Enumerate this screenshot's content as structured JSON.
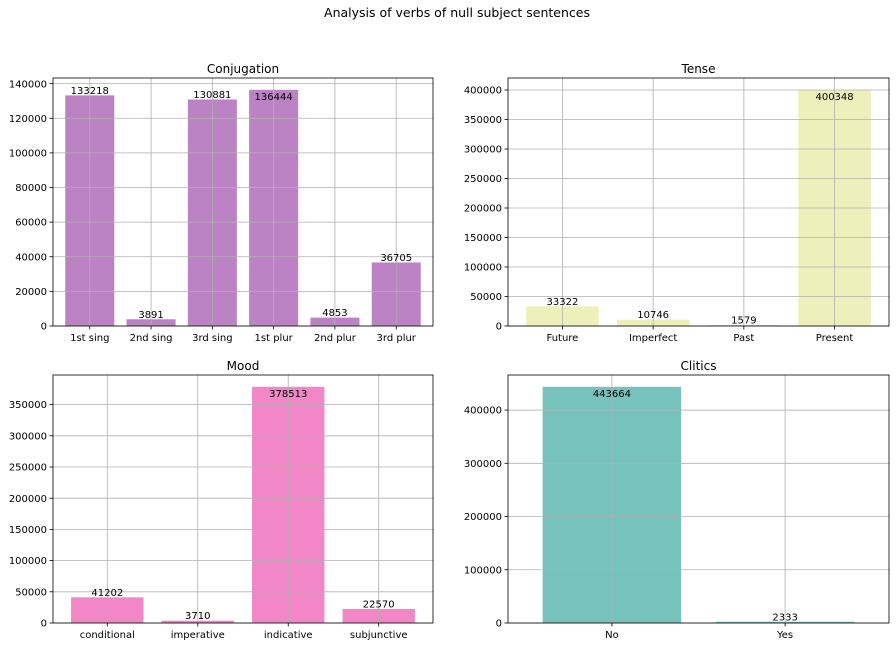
{
  "figure": {
    "suptitle": "Analysis of verbs of null subject sentences"
  },
  "chart_data": [
    {
      "type": "bar",
      "title": "Conjugation",
      "xlabel": "",
      "ylabel": "",
      "categories": [
        "1st sing",
        "2nd sing",
        "3rd sing",
        "1st plur",
        "2nd plur",
        "3rd plur"
      ],
      "values": [
        133218,
        3891,
        130881,
        136444,
        4853,
        36705
      ],
      "ylim": [
        0,
        143266
      ],
      "yticks": [
        0,
        20000,
        40000,
        60000,
        80000,
        100000,
        120000,
        140000
      ],
      "color": "#a45aaf",
      "grid": true
    },
    {
      "type": "bar",
      "title": "Tense",
      "xlabel": "",
      "ylabel": "",
      "categories": [
        "Future",
        "Imperfect",
        "Past",
        "Present"
      ],
      "values": [
        33322,
        10746,
        1579,
        400348
      ],
      "ylim": [
        0,
        420365
      ],
      "yticks": [
        0,
        50000,
        100000,
        150000,
        200000,
        250000,
        300000,
        350000,
        400000
      ],
      "color": "#e9e9a6",
      "grid": true
    },
    {
      "type": "bar",
      "title": "Mood",
      "xlabel": "",
      "ylabel": "",
      "categories": [
        "conditional",
        "imperative",
        "indicative",
        "subjunctive"
      ],
      "values": [
        41202,
        3710,
        378513,
        22570
      ],
      "ylim": [
        0,
        397439
      ],
      "yticks": [
        0,
        50000,
        100000,
        150000,
        200000,
        250000,
        300000,
        350000
      ],
      "color": "#ec5fb3",
      "grid": true
    },
    {
      "type": "bar",
      "title": "Clitics",
      "xlabel": "",
      "ylabel": "",
      "categories": [
        "No",
        "Yes"
      ],
      "values": [
        443664,
        2333
      ],
      "ylim": [
        0,
        465847
      ],
      "yticks": [
        0,
        100000,
        200000,
        300000,
        400000
      ],
      "color": "#4aada6",
      "grid": true
    }
  ]
}
